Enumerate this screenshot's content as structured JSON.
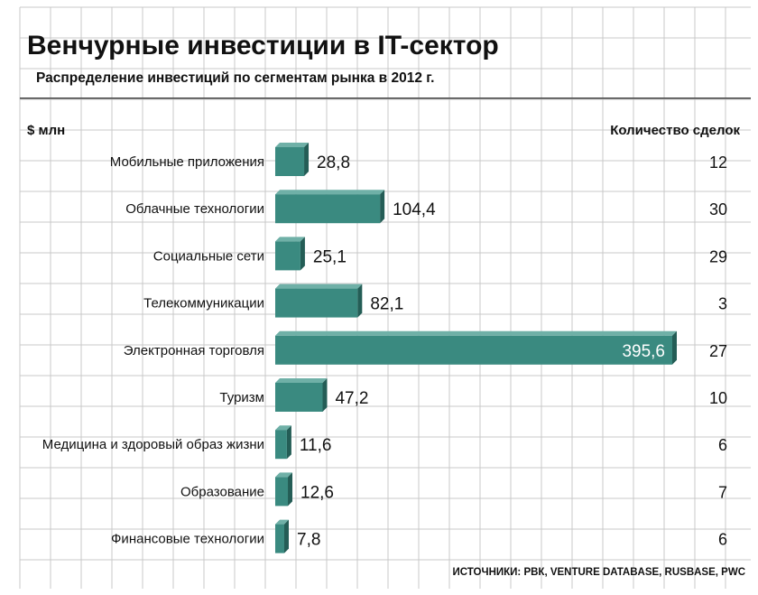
{
  "chart_data": {
    "type": "bar",
    "orientation": "horizontal",
    "title": "Венчурные инвестиции в IT-сектор",
    "subtitle": "Распределение инвестиций по сегментам рынка в 2012 г.",
    "value_axis_label": "$ млн",
    "count_label": "Количество сделок",
    "categories": [
      "Мобильные приложения",
      "Облачные технологии",
      "Социальные сети",
      "Телекоммуникации",
      "Электронная торговля",
      "Туризм",
      "Медицина и здоровый образ жизни",
      "Образование",
      "Финансовые технологии"
    ],
    "values": [
      28.8,
      104.4,
      25.1,
      82.1,
      395.6,
      47.2,
      11.6,
      12.6,
      7.8
    ],
    "value_labels": [
      "28,8",
      "104,4",
      "25,1",
      "82,1",
      "395,6",
      "47,2",
      "11,6",
      "12,6",
      "7,8"
    ],
    "deal_counts": [
      "12",
      "30",
      "29",
      "3",
      "27",
      "10",
      "6",
      "7",
      "6"
    ],
    "source": "ИСТОЧНИКИ: РВК, VENTURE DATABASE, RUSBASE, PWC",
    "colors": {
      "bar": "#3a8a80",
      "bar_top": "#6fb0a7",
      "bar_side": "#245d56",
      "grid": "#c9c9c9",
      "text": "#111111"
    }
  }
}
